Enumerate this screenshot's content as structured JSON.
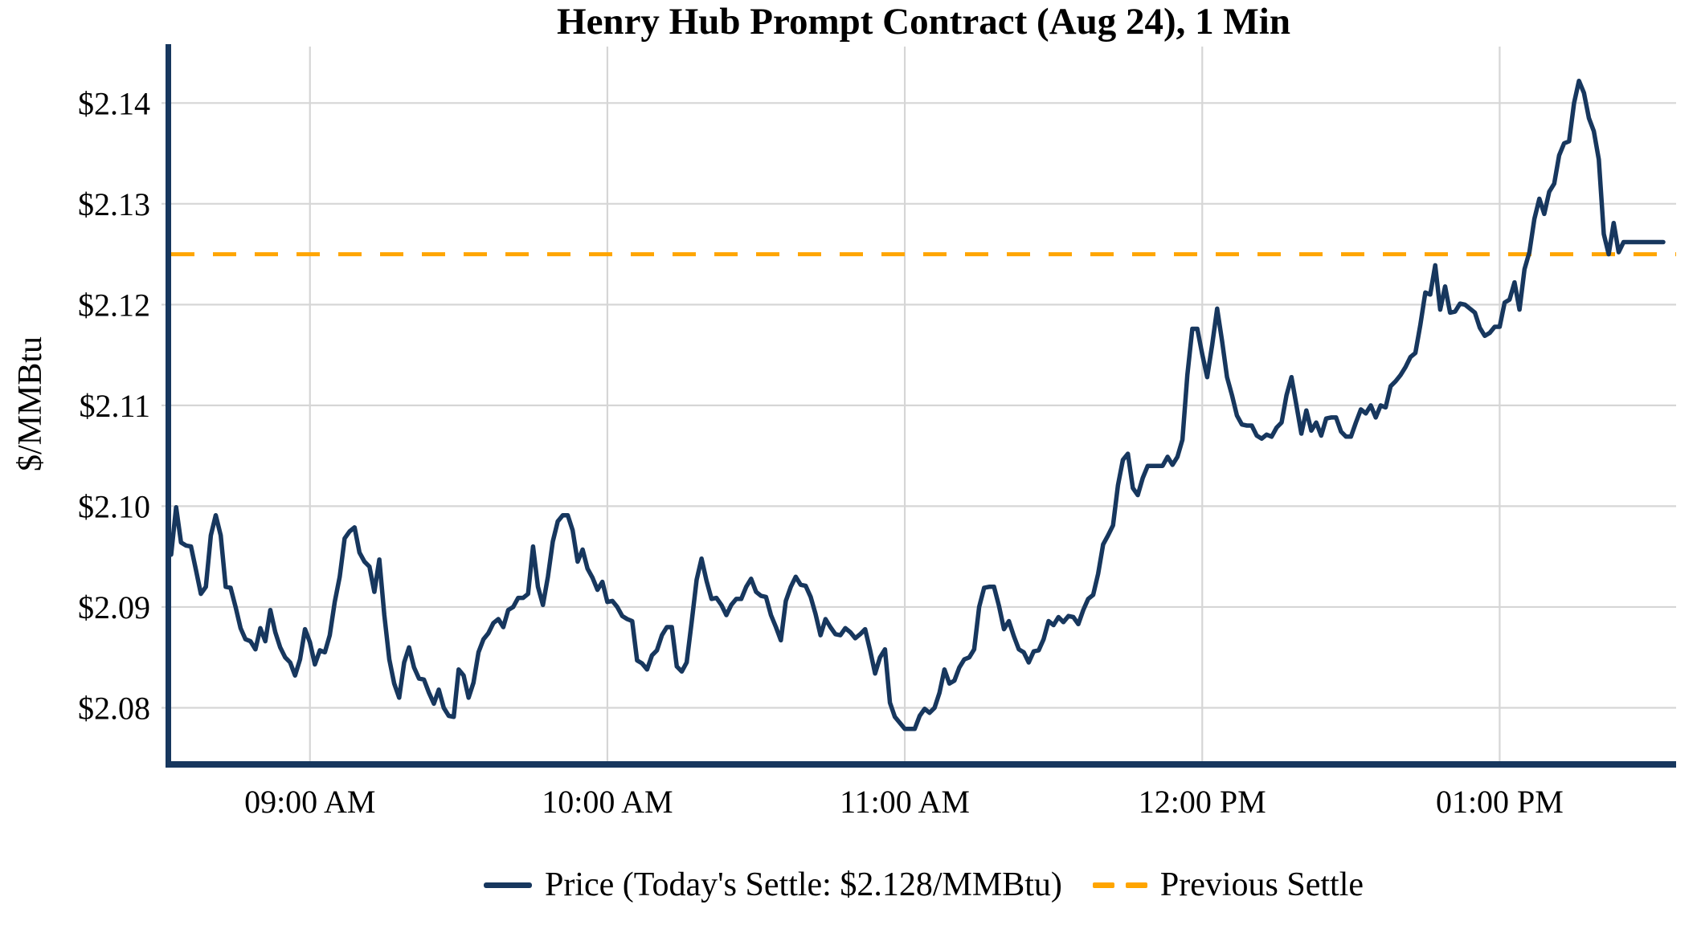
{
  "title": "Henry Hub Prompt Contract (Aug 24), 1 Min",
  "colors": {
    "price_line": "#17375e",
    "previous_settle_line": "#ffa500",
    "gridline": "#d6d6d6",
    "axis_spine": "#17375e",
    "text": "#000000",
    "background": "#ffffff"
  },
  "legend": {
    "price_label": "Price (Today's Settle: $2.128/MMBtu)",
    "previous_settle_label": "Previous Settle"
  },
  "chart_data": {
    "type": "line",
    "title": "Henry Hub Prompt Contract (Aug 24), 1 Min",
    "xlabel": "",
    "ylabel": "$/MMBtu",
    "grid": true,
    "legend_position": "bottom",
    "x_start": "08:32 AM",
    "x_end": "01:33 PM",
    "interval_minutes": 1,
    "x_ticks": [
      "09:00 AM",
      "10:00 AM",
      "11:00 AM",
      "12:00 PM",
      "01:00 PM"
    ],
    "y_ticks": [
      {
        "label": "$2.14",
        "value": 2.14
      },
      {
        "label": "$2.13",
        "value": 2.13
      },
      {
        "label": "$2.12",
        "value": 2.12
      },
      {
        "label": "$2.11",
        "value": 2.11
      },
      {
        "label": "$2.10",
        "value": 2.1
      },
      {
        "label": "$2.09",
        "value": 2.09
      },
      {
        "label": "$2.08",
        "value": 2.08
      }
    ],
    "ylim": [
      2.0747,
      2.1456
    ],
    "todays_settle": 2.128,
    "previous_settle": 2.125,
    "series": [
      {
        "name": "Price",
        "type": "line",
        "color": "#17375e",
        "values": [
          2.0952,
          2.0999,
          2.0964,
          2.0961,
          2.096,
          2.0937,
          2.0913,
          2.092,
          2.0971,
          2.0991,
          2.0971,
          2.092,
          2.0919,
          2.09,
          2.0879,
          2.0868,
          2.0866,
          2.0858,
          2.0879,
          2.0866,
          2.0897,
          2.0875,
          2.086,
          2.085,
          2.0845,
          2.0832,
          2.0848,
          2.0878,
          2.0865,
          2.0843,
          2.0857,
          2.0855,
          2.0872,
          2.0905,
          2.093,
          2.0968,
          2.0975,
          2.0979,
          2.0954,
          2.0945,
          2.094,
          2.0915,
          2.0947,
          2.0892,
          2.0848,
          2.0824,
          2.081,
          2.0845,
          2.086,
          2.084,
          2.0829,
          2.0828,
          2.0815,
          2.0804,
          2.0818,
          2.08,
          2.0792,
          2.0791,
          2.0838,
          2.0832,
          2.081,
          2.0825,
          2.0855,
          2.0868,
          2.0874,
          2.0884,
          2.0888,
          2.088,
          2.0897,
          2.09,
          2.0909,
          2.0909,
          2.0913,
          2.096,
          2.092,
          2.0902,
          2.093,
          2.0965,
          2.0985,
          2.0991,
          2.0991,
          2.0976,
          2.0945,
          2.0957,
          2.0938,
          2.0929,
          2.0917,
          2.0925,
          2.0905,
          2.0906,
          2.09,
          2.0891,
          2.0888,
          2.0886,
          2.0847,
          2.0844,
          2.0838,
          2.0852,
          2.0857,
          2.0872,
          2.088,
          2.088,
          2.0841,
          2.0836,
          2.0845,
          2.0885,
          2.0927,
          2.0948,
          2.0926,
          2.0908,
          2.0909,
          2.0902,
          2.0892,
          2.0902,
          2.0908,
          2.0908,
          2.092,
          2.0928,
          2.0915,
          2.0911,
          2.091,
          2.0892,
          2.088,
          2.0867,
          2.0906,
          2.092,
          2.093,
          2.0922,
          2.0921,
          2.091,
          2.0893,
          2.0872,
          2.0888,
          2.088,
          2.0873,
          2.0872,
          2.0879,
          2.0875,
          2.0869,
          2.0873,
          2.0878,
          2.0857,
          2.0834,
          2.085,
          2.0858,
          2.0805,
          2.0791,
          2.0785,
          2.0779,
          2.0779,
          2.0779,
          2.0792,
          2.0799,
          2.0795,
          2.08,
          2.0815,
          2.0838,
          2.0824,
          2.0827,
          2.084,
          2.0848,
          2.085,
          2.0858,
          2.09,
          2.0919,
          2.092,
          2.092,
          2.0901,
          2.0878,
          2.0886,
          2.0871,
          2.0858,
          2.0855,
          2.0845,
          2.0856,
          2.0857,
          2.0868,
          2.0886,
          2.0882,
          2.089,
          2.0885,
          2.0891,
          2.089,
          2.0883,
          2.0897,
          2.0908,
          2.0912,
          2.0933,
          2.0962,
          2.0971,
          2.0981,
          2.1021,
          2.1046,
          2.1052,
          2.1018,
          2.1011,
          2.1028,
          2.104,
          2.104,
          2.104,
          2.104,
          2.1049,
          2.1041,
          2.1049,
          2.1066,
          2.113,
          2.1176,
          2.1176,
          2.1151,
          2.1128,
          2.116,
          2.1196,
          2.1164,
          2.1128,
          2.111,
          2.109,
          2.1081,
          2.108,
          2.108,
          2.107,
          2.1067,
          2.1071,
          2.1069,
          2.1078,
          2.1083,
          2.111,
          2.1128,
          2.11,
          2.1072,
          2.1095,
          2.1075,
          2.1083,
          2.107,
          2.1087,
          2.1088,
          2.1088,
          2.1074,
          2.1069,
          2.1069,
          2.1083,
          2.1096,
          2.1092,
          2.11,
          2.1088,
          2.11,
          2.1098,
          2.1119,
          2.1124,
          2.113,
          2.1138,
          2.1148,
          2.1152,
          2.118,
          2.1212,
          2.121,
          2.1239,
          2.1195,
          2.1218,
          2.1192,
          2.1193,
          2.1201,
          2.12,
          2.1196,
          2.1192,
          2.1177,
          2.1169,
          2.1172,
          2.1178,
          2.1178,
          2.1202,
          2.1205,
          2.1222,
          2.1195,
          2.1235,
          2.1252,
          2.1285,
          2.1305,
          2.129,
          2.1312,
          2.132,
          2.1348,
          2.136,
          2.1362,
          2.14,
          2.1422,
          2.141,
          2.1385,
          2.1372,
          2.1344,
          2.127,
          2.125,
          2.1281,
          2.1252,
          2.1262,
          2.1262,
          2.1262,
          2.1262,
          2.1262,
          2.1262,
          2.1262,
          2.1262,
          2.1262
        ]
      },
      {
        "name": "Previous Settle",
        "type": "hline",
        "style": "dashed",
        "color": "#ffa500",
        "value": 2.125
      }
    ]
  }
}
